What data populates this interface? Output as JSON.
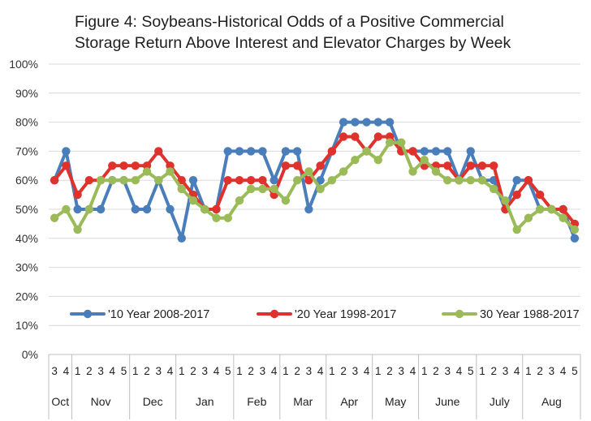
{
  "chart_data": {
    "type": "line",
    "title_lines": [
      "Figure 4: Soybeans-Historical Odds of a Positive Commercial",
      "Storage Return Above Interest and Elevator Charges by Week"
    ],
    "y_ticks": [
      "0%",
      "10%",
      "20%",
      "30%",
      "40%",
      "50%",
      "60%",
      "70%",
      "80%",
      "90%",
      "100%"
    ],
    "ylim": [
      0,
      100
    ],
    "grid": true,
    "legend_position": "bottom-inside",
    "months": [
      {
        "label": "Oct",
        "weeks": [
          "3",
          "4"
        ]
      },
      {
        "label": "Nov",
        "weeks": [
          "1",
          "2",
          "3",
          "4",
          "5"
        ]
      },
      {
        "label": "Dec",
        "weeks": [
          "1",
          "2",
          "3",
          "4"
        ]
      },
      {
        "label": "Jan",
        "weeks": [
          "1",
          "2",
          "3",
          "4",
          "5"
        ]
      },
      {
        "label": "Feb",
        "weeks": [
          "1",
          "2",
          "3",
          "4"
        ]
      },
      {
        "label": "Mar",
        "weeks": [
          "1",
          "2",
          "3",
          "4"
        ]
      },
      {
        "label": "Apr",
        "weeks": [
          "1",
          "2",
          "3",
          "4"
        ]
      },
      {
        "label": "May",
        "weeks": [
          "1",
          "2",
          "3",
          "4"
        ]
      },
      {
        "label": "June",
        "weeks": [
          "1",
          "2",
          "3",
          "4",
          "5"
        ]
      },
      {
        "label": "July",
        "weeks": [
          "1",
          "2",
          "3",
          "4"
        ]
      },
      {
        "label": "Aug",
        "weeks": [
          "1",
          "2",
          "3",
          "4",
          "5"
        ]
      }
    ],
    "series": [
      {
        "name": "'10 Year 2008-2017",
        "color": "#4a7ebb",
        "values": [
          60,
          70,
          50,
          50,
          50,
          60,
          60,
          50,
          50,
          60,
          50,
          40,
          60,
          50,
          50,
          70,
          70,
          70,
          70,
          60,
          70,
          70,
          50,
          60,
          70,
          80,
          80,
          80,
          80,
          80,
          70,
          70,
          70,
          70,
          70,
          60,
          70,
          60,
          60,
          50,
          60,
          60,
          50,
          50,
          50,
          40
        ]
      },
      {
        "name": "'20 Year 1998-2017",
        "color": "#e0322d",
        "values": [
          60,
          65,
          55,
          60,
          60,
          65,
          65,
          65,
          65,
          70,
          65,
          60,
          55,
          50,
          50,
          60,
          60,
          60,
          60,
          55,
          65,
          65,
          60,
          65,
          70,
          75,
          75,
          70,
          75,
          75,
          70,
          70,
          65,
          65,
          65,
          60,
          65,
          65,
          65,
          50,
          55,
          60,
          55,
          50,
          50,
          45
        ]
      },
      {
        "name": "30 Year 1988-2017",
        "color": "#9bbb59",
        "values": [
          47,
          50,
          43,
          50,
          60,
          60,
          60,
          60,
          63,
          60,
          63,
          57,
          53,
          50,
          47,
          47,
          53,
          57,
          57,
          57,
          53,
          60,
          63,
          57,
          60,
          63,
          67,
          70,
          67,
          73,
          73,
          63,
          67,
          63,
          60,
          60,
          60,
          60,
          57,
          53,
          43,
          47,
          50,
          50,
          47,
          43
        ]
      }
    ]
  }
}
